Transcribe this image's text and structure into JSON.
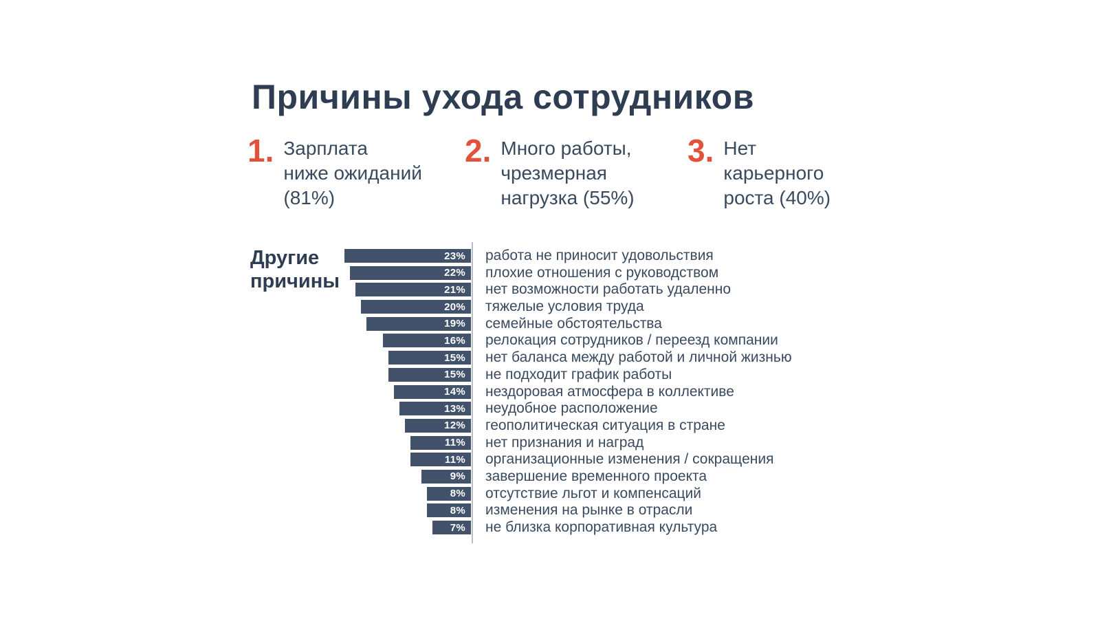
{
  "title": "Причины ухода сотрудников",
  "top_reasons": [
    {
      "rank": "1.",
      "text": "Зарплата\nниже ожиданий\n(81%)"
    },
    {
      "rank": "2.",
      "text": "Много работы,\nчрезмерная\nнагрузка (55%)"
    },
    {
      "rank": "3.",
      "text": "Нет\nкарьерного\nроста (40%)"
    }
  ],
  "other_reasons_label": "Другие причины",
  "chart_data": {
    "type": "bar",
    "orientation": "horizontal",
    "title": "Причины ухода сотрудников",
    "group_label": "Другие причины",
    "categories": [
      "работа не приносит удовольствия",
      "плохие отношения с руководством",
      "нет возможности работать удаленно",
      "тяжелые условия труда",
      "семейные обстоятельства",
      "релокация сотрудников / переезд компании",
      "нет баланса между работой и личной жизнью",
      "не подходит график работы",
      "нездоровая атмосфера в коллективе",
      "неудобное расположение",
      "геополитическая ситуация в стране",
      "нет признания и наград",
      "организационные изменения / сокращения",
      "завершение временного проекта",
      "отсутствие льгот и компенсаций",
      "изменения на рынке в отрасли",
      "не близка корпоративная культура"
    ],
    "values": [
      23,
      22,
      21,
      20,
      19,
      16,
      15,
      15,
      14,
      13,
      12,
      11,
      11,
      9,
      8,
      8,
      7
    ],
    "value_suffix": "%",
    "xlim": [
      0,
      25
    ],
    "grid": false,
    "legend": false,
    "bar_color": "#41526a",
    "accent_color": "#e0523a",
    "text_color": "#2e3d52",
    "background_color": "#ffffff"
  }
}
